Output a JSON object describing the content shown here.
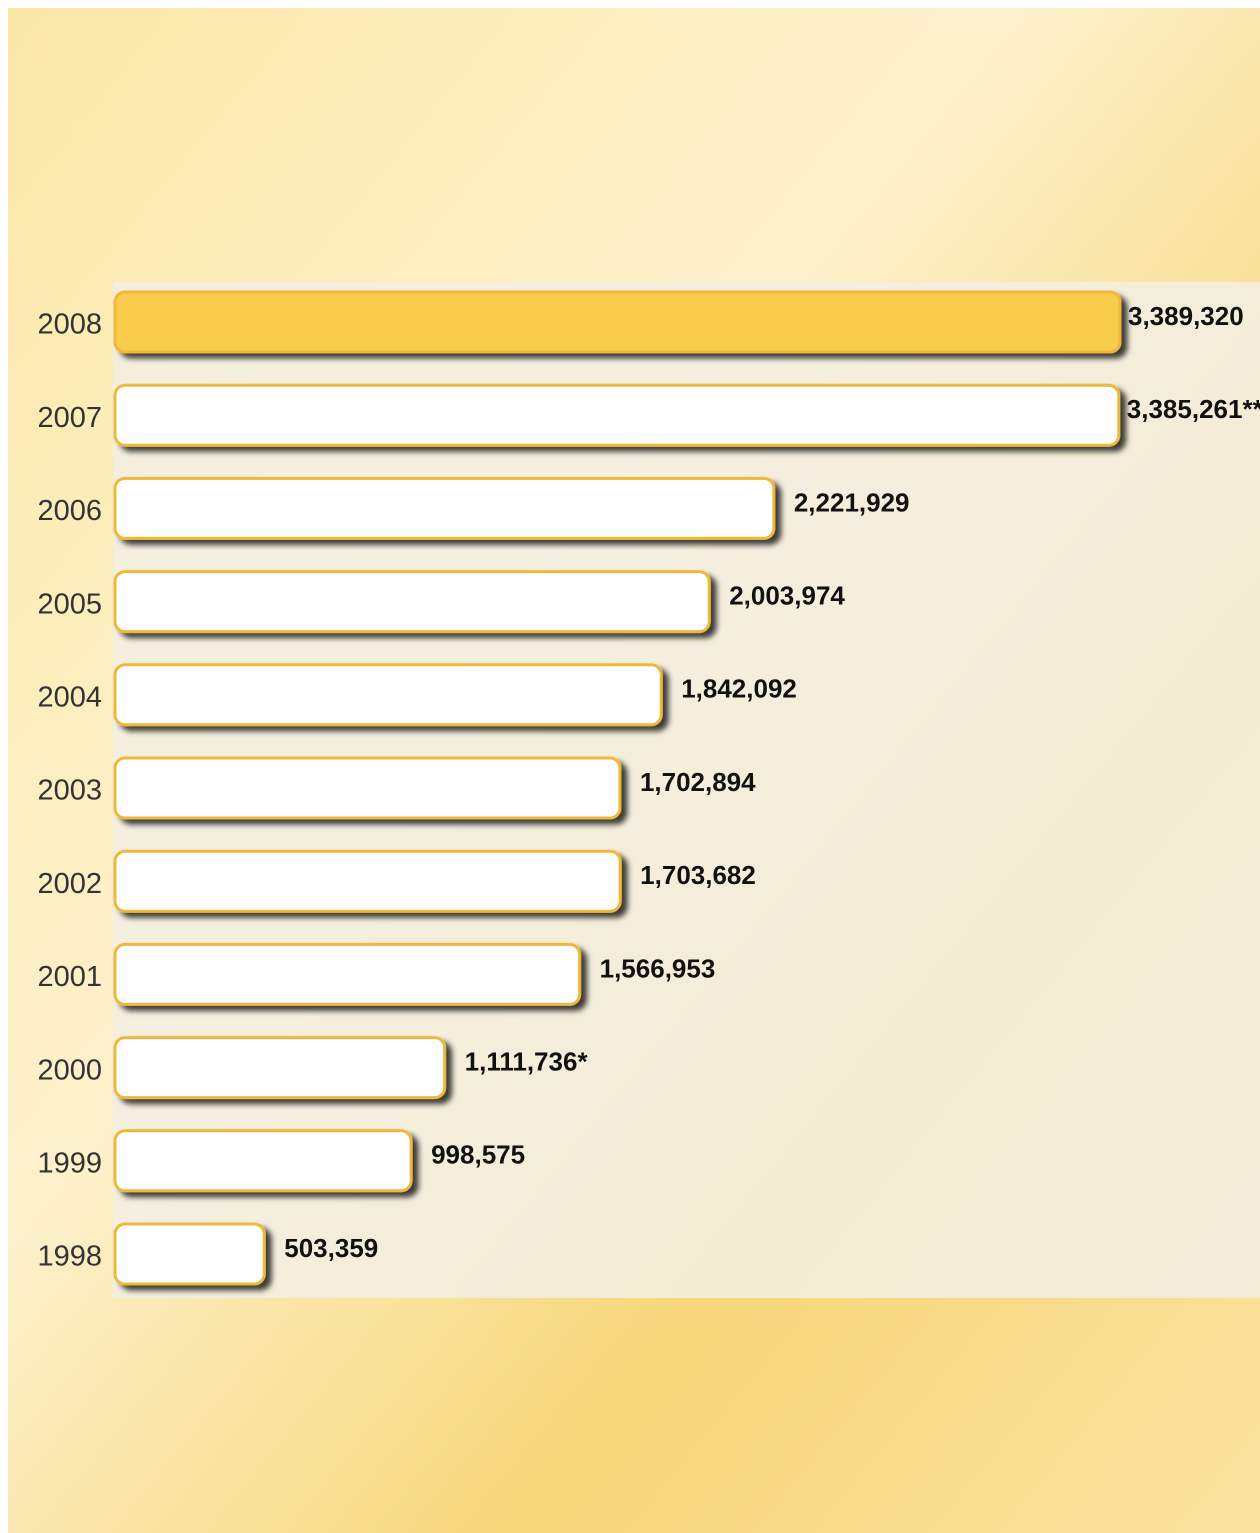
{
  "chart_data": {
    "type": "bar",
    "orientation": "horizontal",
    "categories": [
      "2008",
      "2007",
      "2006",
      "2005",
      "2004",
      "2003",
      "2002",
      "2001",
      "2000",
      "1999",
      "1998"
    ],
    "values": [
      3389320,
      3385261,
      2221929,
      2003974,
      1842092,
      1702894,
      1703682,
      1566953,
      1111736,
      998575,
      503359
    ],
    "value_labels": [
      "3,389,320",
      "3,385,261**",
      "2,221,929",
      "2,003,974",
      "1,842,092",
      "1,702,894",
      "1,703,682",
      "1,566,953",
      "1,111,736*",
      "998,575",
      "503,359"
    ],
    "colors": [
      "#f9cd4c",
      "#ffffff",
      "#ffffff",
      "#ffffff",
      "#ffffff",
      "#ffffff",
      "#ffffff",
      "#ffffff",
      "#ffffff",
      "#ffffff",
      "#ffffff"
    ],
    "border_color": "#f0b83a"
  }
}
